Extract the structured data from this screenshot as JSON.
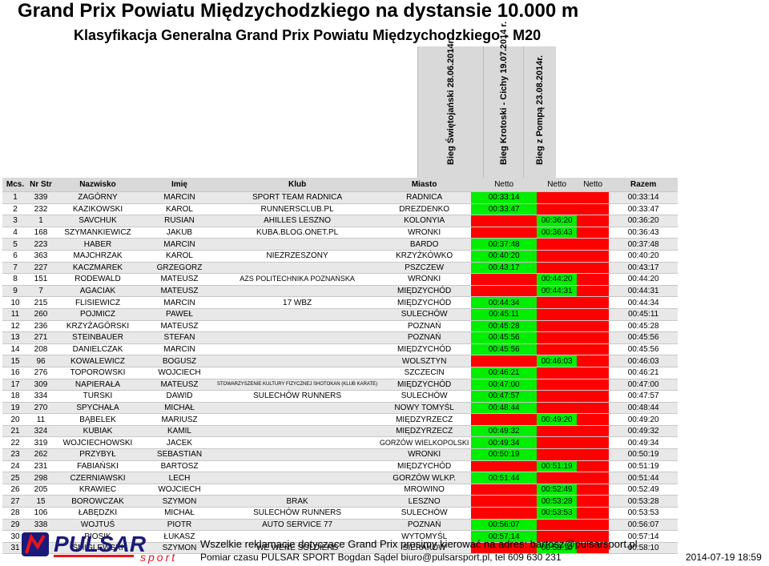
{
  "title": "Grand Prix Powiatu Międzychodzkiego na dystansie 10.000 m",
  "subtitle": "Klasyfikacja Generalna Grand Prix Powiatu Międzychodzkiego - M20",
  "race_headers": [
    "Bieg Świętojański 28.06.2014r.",
    "Bieg Krotoski - Cichy 19.07.2014 r.",
    "Bieg z Pompą 23.08.2014r."
  ],
  "columns": {
    "mcs": "Mcs.",
    "nr": "Nr Str",
    "nazwisko": "Nazwisko",
    "imie": "Imię",
    "klub": "Klub",
    "miasto": "Miasto",
    "netto1": "Netto",
    "netto2": "Netto",
    "netto3": "Netto",
    "razem": "Razem"
  },
  "rows": [
    {
      "mcs": "1",
      "nr": "339",
      "nazwisko": "ZAGÓRNY",
      "imie": "MARCIN",
      "klub": "SPORT TEAM RADNICA",
      "miasto": "RADNICA",
      "n1": "00:33:14",
      "n2": "",
      "n3": "",
      "razem": "00:33:14"
    },
    {
      "mcs": "2",
      "nr": "232",
      "nazwisko": "KAZIKOWSKI",
      "imie": "KAROL",
      "klub": "RUNNERSCLUB.PL",
      "miasto": "DREZDENKO",
      "n1": "00:33:47",
      "n2": "",
      "n3": "",
      "razem": "00:33:47"
    },
    {
      "mcs": "3",
      "nr": "1",
      "nazwisko": "SAVCHUK",
      "imie": "RUSIAN",
      "klub": "AHILLES LESZNO",
      "miasto": "KOLONYIA",
      "n1": "",
      "n2": "00:36:20",
      "n3": "",
      "razem": "00:36:20"
    },
    {
      "mcs": "4",
      "nr": "168",
      "nazwisko": "SZYMANKIEWICZ",
      "imie": "JAKUB",
      "klub": "KUBA.BLOG.ONET.PL",
      "miasto": "WRONKI",
      "n1": "",
      "n2": "00:36:43",
      "n3": "",
      "razem": "00:36:43"
    },
    {
      "mcs": "5",
      "nr": "223",
      "nazwisko": "HABER",
      "imie": "MARCIN",
      "klub": "",
      "miasto": "BARDO",
      "n1": "00:37:48",
      "n2": "",
      "n3": "",
      "razem": "00:37:48"
    },
    {
      "mcs": "6",
      "nr": "363",
      "nazwisko": "MAJCHRZAK",
      "imie": "KAROL",
      "klub": "NIEZRZESZONY",
      "miasto": "KRZYŻKÓWKO",
      "n1": "00:40:20",
      "n2": "",
      "n3": "",
      "razem": "00:40:20"
    },
    {
      "mcs": "7",
      "nr": "227",
      "nazwisko": "KACZMAREK",
      "imie": "GRZEGORZ",
      "klub": "",
      "miasto": "PSZCZEW",
      "n1": "00:43:17",
      "n2": "",
      "n3": "",
      "razem": "00:43:17"
    },
    {
      "mcs": "8",
      "nr": "151",
      "nazwisko": "RODEWALD",
      "imie": "MATEUSZ",
      "klub": "AZS POLITECHNIKA POZNAŃSKA",
      "miasto": "WRONKI",
      "n1": "",
      "n2": "00:44:20",
      "n3": "",
      "razem": "00:44:20"
    },
    {
      "mcs": "9",
      "nr": "7",
      "nazwisko": "AGACIAK",
      "imie": "MATEUSZ",
      "klub": "",
      "miasto": "MIĘDZYCHÓD",
      "n1": "",
      "n2": "00:44:31",
      "n3": "",
      "razem": "00:44:31"
    },
    {
      "mcs": "10",
      "nr": "215",
      "nazwisko": "FLISIEWICZ",
      "imie": "MARCIN",
      "klub": "17 WBZ",
      "miasto": "MIĘDZYCHÓD",
      "n1": "00:44:34",
      "n2": "",
      "n3": "",
      "razem": "00:44:34"
    },
    {
      "mcs": "11",
      "nr": "260",
      "nazwisko": "POJMICZ",
      "imie": "PAWEŁ",
      "klub": "",
      "miasto": "SULECHÓW",
      "n1": "00:45:11",
      "n2": "",
      "n3": "",
      "razem": "00:45:11"
    },
    {
      "mcs": "12",
      "nr": "236",
      "nazwisko": "KRZYŻAGÓRSKI",
      "imie": "MATEUSZ",
      "klub": "",
      "miasto": "POZNAŃ",
      "n1": "00:45:28",
      "n2": "",
      "n3": "",
      "razem": "00:45:28"
    },
    {
      "mcs": "13",
      "nr": "271",
      "nazwisko": "STEINBAUER",
      "imie": "STEFAN",
      "klub": "",
      "miasto": "POZNAŃ",
      "n1": "00:45:56",
      "n2": "",
      "n3": "",
      "razem": "00:45:56"
    },
    {
      "mcs": "14",
      "nr": "208",
      "nazwisko": "DANIELCZAK",
      "imie": "MARCIN",
      "klub": "",
      "miasto": "MIĘDZYCHÓD",
      "n1": "00:45:56",
      "n2": "",
      "n3": "",
      "razem": "00:45:56"
    },
    {
      "mcs": "15",
      "nr": "96",
      "nazwisko": "KOWALEWICZ",
      "imie": "BOGUSZ",
      "klub": "",
      "miasto": "WOLSZTYN",
      "n1": "",
      "n2": "00:46:03",
      "n3": "",
      "razem": "00:46:03"
    },
    {
      "mcs": "16",
      "nr": "276",
      "nazwisko": "TOPOROWSKI",
      "imie": "WOJCIECH",
      "klub": "",
      "miasto": "SZCZECIN",
      "n1": "00:46:21",
      "n2": "",
      "n3": "",
      "razem": "00:46:21"
    },
    {
      "mcs": "17",
      "nr": "309",
      "nazwisko": "NAPIERAŁA",
      "imie": "MATEUSZ",
      "klub": "STOWARZYSZENIE KULTURY FIZYCZNEJ SHOTOKAN (KLUB KARATE)",
      "miasto": "MIĘDZYCHÓD",
      "n1": "00:47:00",
      "n2": "",
      "n3": "",
      "razem": "00:47:00"
    },
    {
      "mcs": "18",
      "nr": "334",
      "nazwisko": "TURSKI",
      "imie": "DAWID",
      "klub": "SULECHÓW RUNNERS",
      "miasto": "SULECHÓW",
      "n1": "00:47:57",
      "n2": "",
      "n3": "",
      "razem": "00:47:57"
    },
    {
      "mcs": "19",
      "nr": "270",
      "nazwisko": "SPYCHAŁA",
      "imie": "MICHAŁ",
      "klub": "",
      "miasto": "NOWY TOMYŚL",
      "n1": "00:48:44",
      "n2": "",
      "n3": "",
      "razem": "00:48:44"
    },
    {
      "mcs": "20",
      "nr": "11",
      "nazwisko": "BĄBELEK",
      "imie": "MARIUSZ",
      "klub": "",
      "miasto": "MIĘDZYRZECZ",
      "n1": "",
      "n2": "00:49:20",
      "n3": "",
      "razem": "00:49:20"
    },
    {
      "mcs": "21",
      "nr": "324",
      "nazwisko": "KUBIAK",
      "imie": "KAMIL",
      "klub": "",
      "miasto": "MIĘDZYRZECZ",
      "n1": "00:49:32",
      "n2": "",
      "n3": "",
      "razem": "00:49:32"
    },
    {
      "mcs": "22",
      "nr": "319",
      "nazwisko": "WOJCIECHOWSKI",
      "imie": "JACEK",
      "klub": "",
      "miasto": "GORZÓW WIELKOPOLSKI",
      "n1": "00:49:34",
      "n2": "",
      "n3": "",
      "razem": "00:49:34"
    },
    {
      "mcs": "23",
      "nr": "262",
      "nazwisko": "PRZYBYŁ",
      "imie": "SEBASTIAN",
      "klub": "",
      "miasto": "WRONKI",
      "n1": "00:50:19",
      "n2": "",
      "n3": "",
      "razem": "00:50:19"
    },
    {
      "mcs": "24",
      "nr": "231",
      "nazwisko": "FABIAŃSKI",
      "imie": "BARTOSZ",
      "klub": "",
      "miasto": "MIĘDZYCHÓD",
      "n1": "",
      "n2": "00:51:19",
      "n3": "",
      "razem": "00:51:19"
    },
    {
      "mcs": "25",
      "nr": "298",
      "nazwisko": "CZERNIAWSKI",
      "imie": "LECH",
      "klub": "",
      "miasto": "GORZÓW WLKP.",
      "n1": "00:51:44",
      "n2": "",
      "n3": "",
      "razem": "00:51:44"
    },
    {
      "mcs": "26",
      "nr": "205",
      "nazwisko": "KRAWIEC",
      "imie": "WOJCIECH",
      "klub": "",
      "miasto": "MROWINO",
      "n1": "",
      "n2": "00:52:49",
      "n3": "",
      "razem": "00:52:49"
    },
    {
      "mcs": "27",
      "nr": "15",
      "nazwisko": "BOROWCZAK",
      "imie": "SZYMON",
      "klub": "BRAK",
      "miasto": "LESZNO",
      "n1": "",
      "n2": "00:53:28",
      "n3": "",
      "razem": "00:53:28"
    },
    {
      "mcs": "28",
      "nr": "106",
      "nazwisko": "ŁABĘDZKI",
      "imie": "MICHAŁ",
      "klub": "SULECHÓW RUNNERS",
      "miasto": "SULECHÓW",
      "n1": "",
      "n2": "00:53:53",
      "n3": "",
      "razem": "00:53:53"
    },
    {
      "mcs": "29",
      "nr": "338",
      "nazwisko": "WOJTUŚ",
      "imie": "PIOTR",
      "klub": "AUTO SERVICE 77",
      "miasto": "POZNAŃ",
      "n1": "00:56:07",
      "n2": "",
      "n3": "",
      "razem": "00:56:07"
    },
    {
      "mcs": "30",
      "nr": "333",
      "nazwisko": "PIOSIK",
      "imie": "ŁUKASZ",
      "klub": "",
      "miasto": "WYTOMYŚL",
      "n1": "00:57:14",
      "n2": "",
      "n3": "",
      "razem": "00:57:14"
    },
    {
      "mcs": "31",
      "nr": "171",
      "nazwisko": "ŚMIGLEWSKI",
      "imie": "SZYMON",
      "klub": "WE WERE SOLDIERS",
      "miasto": "SIERAKÓW",
      "n1": "",
      "n2": "00:58:10",
      "n3": "",
      "razem": "00:58:10"
    }
  ],
  "colors": {
    "green": "#00ee00",
    "red": "#ff0000",
    "header_gray": "#d9d9d9"
  },
  "logo": {
    "text": "PULSAR",
    "sub": "sport"
  },
  "footer": {
    "line1": "Wszelkie reklamacje dotyczące Grand Prix prosimy kierować na adres: bartosz@pulsarsport.pl",
    "line2": "Pomiar czasu PULSAR SPORT Bogdan Sądel biuro@pulsarsport.pl, tel 609 630 231",
    "timestamp": "2014-07-19 18:59"
  }
}
